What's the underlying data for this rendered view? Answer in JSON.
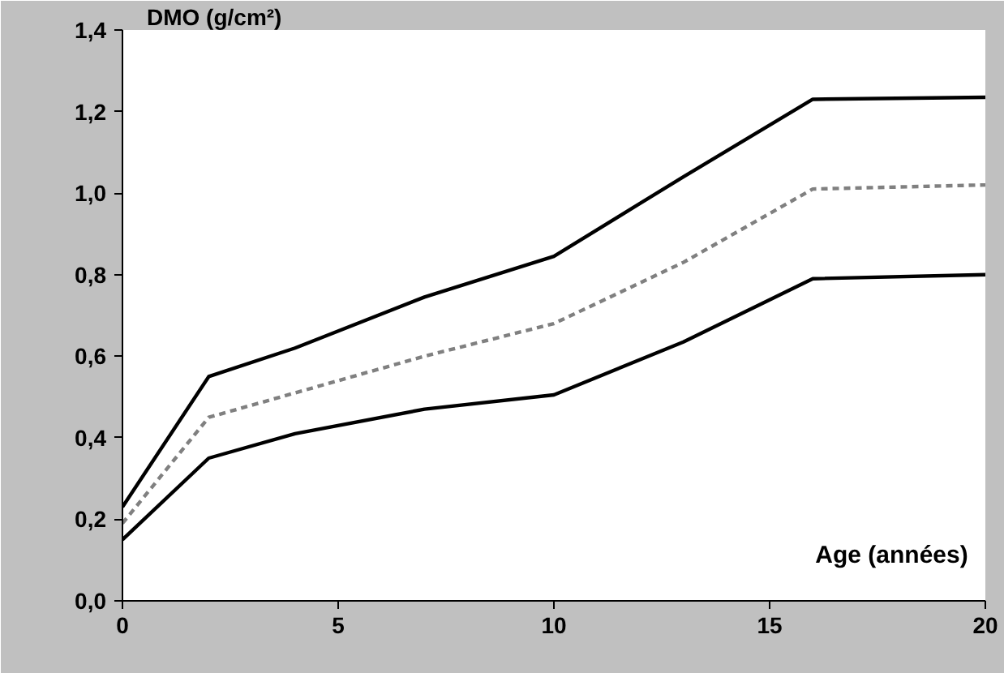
{
  "chart_data": {
    "type": "line",
    "xlabel": "Age (années)",
    "ylabel": "DMO (g/cm²)",
    "xlim": [
      0,
      20
    ],
    "xticks": [
      0,
      5,
      10,
      15,
      20
    ],
    "ylim": [
      0,
      1.4
    ],
    "yticks": [
      {
        "value": 0,
        "label": "0,0"
      },
      {
        "value": 0.2,
        "label": "0,2"
      },
      {
        "value": 0.4,
        "label": "0,4"
      },
      {
        "value": 0.6,
        "label": "0,6"
      },
      {
        "value": 0.8,
        "label": "0,8"
      },
      {
        "value": 1.0,
        "label": "1,0"
      },
      {
        "value": 1.2,
        "label": "1,2"
      },
      {
        "value": 1.4,
        "label": "1,4"
      }
    ],
    "grid": false,
    "marker": "none",
    "series": [
      {
        "color": "#000000",
        "line_style": "solid",
        "x": [
          0,
          2,
          4,
          7,
          10,
          13,
          16,
          20
        ],
        "values": [
          0.23,
          0.55,
          0.62,
          0.745,
          0.845,
          1.04,
          1.23,
          1.235
        ]
      },
      {
        "color": "#808080",
        "line_style": "dashed",
        "x": [
          0,
          2,
          4,
          7,
          10,
          13,
          16,
          20
        ],
        "values": [
          0.19,
          0.45,
          0.51,
          0.6,
          0.68,
          0.83,
          1.01,
          1.02
        ]
      },
      {
        "color": "#000000",
        "line_style": "solid",
        "x": [
          0,
          2,
          4,
          7,
          10,
          13,
          16,
          20
        ],
        "values": [
          0.15,
          0.35,
          0.41,
          0.47,
          0.505,
          0.635,
          0.79,
          0.8
        ]
      }
    ]
  }
}
